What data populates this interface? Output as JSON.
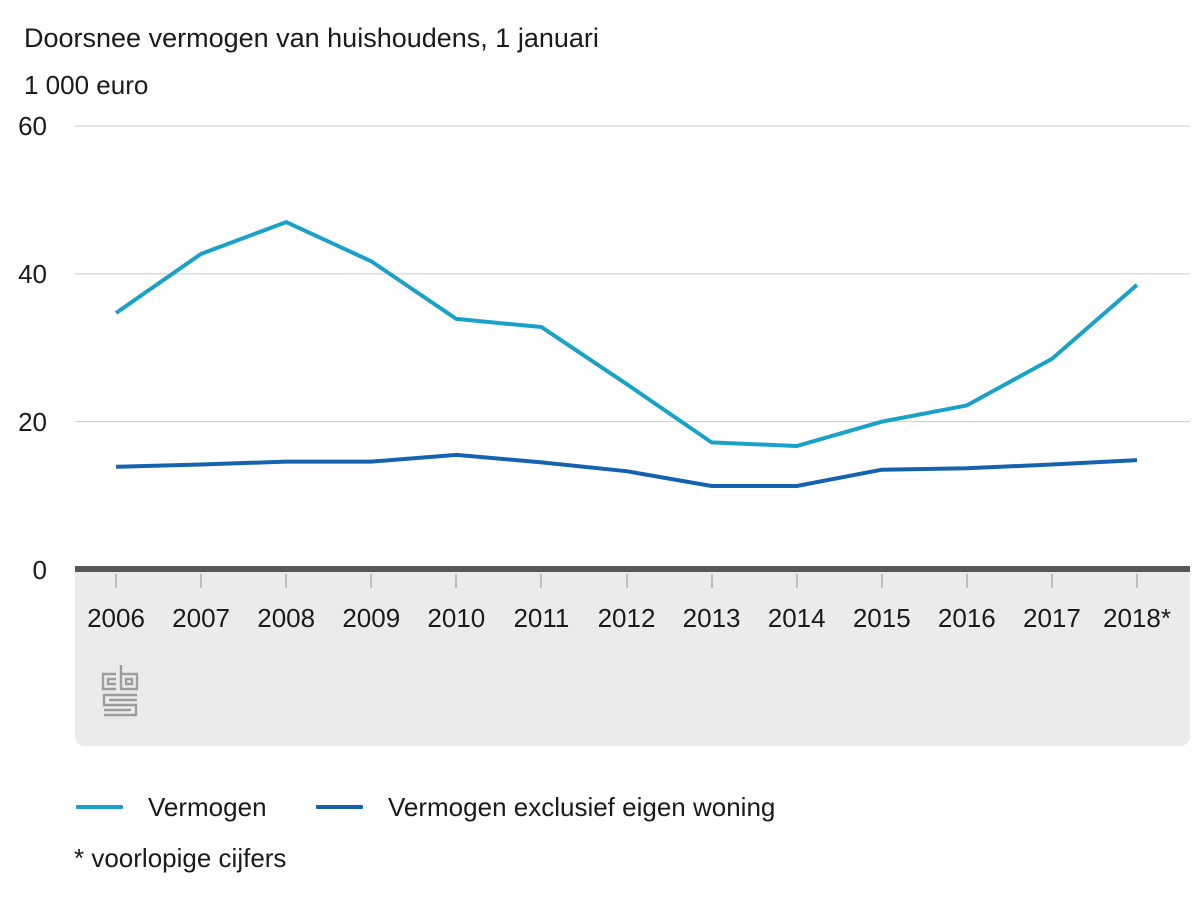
{
  "title": "Doorsnee vermogen van huishoudens, 1 januari",
  "unit_label": "1 000 euro",
  "footnote": "* voorlopige cijfers",
  "logo_name": "cbs-logo",
  "colors": {
    "series_vermogen": "#1aa1c9",
    "series_vermogen_excl": "#1563ae",
    "axis_bar": "#58585a",
    "plot_strip": "#ebebeb",
    "gridline": "#cbcbcb",
    "tick": "#bdbdbd",
    "text": "#1a1a1a",
    "logo": "#9d9d9d",
    "background": "#ffffff"
  },
  "chart_data": {
    "type": "line",
    "title": "Doorsnee vermogen van huishoudens, 1 januari",
    "ylabel": "1 000 euro",
    "xlabel": "",
    "categories": [
      "2006",
      "2007",
      "2008",
      "2009",
      "2010",
      "2011",
      "2012",
      "2013",
      "2014",
      "2015",
      "2016",
      "2017",
      "2018*"
    ],
    "series": [
      {
        "name": "Vermogen",
        "color": "#1aa1c9",
        "values": [
          34.7,
          42.7,
          47.0,
          41.7,
          33.9,
          32.8,
          25.1,
          17.2,
          16.7,
          20.0,
          22.2,
          28.5,
          38.5
        ]
      },
      {
        "name": "Vermogen exclusief eigen woning",
        "color": "#1563ae",
        "values": [
          13.9,
          14.2,
          14.6,
          14.6,
          15.5,
          14.5,
          13.3,
          11.3,
          11.3,
          13.5,
          13.7,
          14.2,
          14.8
        ]
      }
    ],
    "ylim": [
      0,
      60
    ],
    "yticks": [
      60,
      40,
      20,
      0
    ],
    "grid": true,
    "legend_position": "bottom",
    "footnote": "* voorlopige cijfers"
  }
}
